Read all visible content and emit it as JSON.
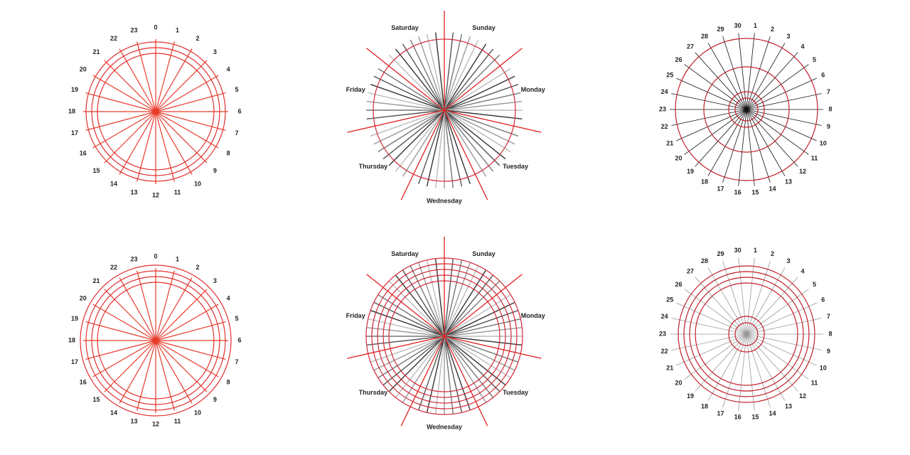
{
  "panels": [
    {
      "labels": [
        "0",
        "1",
        "2",
        "3",
        "4",
        "5",
        "6",
        "7",
        "8",
        "9",
        "10",
        "11",
        "12",
        "13",
        "14",
        "15",
        "16",
        "17",
        "18",
        "19",
        "20",
        "21",
        "22",
        "23"
      ]
    },
    {
      "labels": [
        "Sunday",
        "Monday",
        "Tuesday",
        "Wednesday",
        "Thursday",
        "Friday",
        "Saturday"
      ]
    },
    {
      "labels": [
        "1",
        "2",
        "3",
        "4",
        "5",
        "6",
        "7",
        "8",
        "9",
        "10",
        "11",
        "12",
        "13",
        "14",
        "15",
        "16",
        "17",
        "18",
        "19",
        "20",
        "21",
        "22",
        "23",
        "24",
        "25",
        "26",
        "27",
        "28",
        "29",
        "30"
      ]
    },
    {
      "labels": [
        "0",
        "1",
        "2",
        "3",
        "4",
        "5",
        "6",
        "7",
        "8",
        "9",
        "10",
        "11",
        "12",
        "13",
        "14",
        "15",
        "16",
        "17",
        "18",
        "19",
        "20",
        "21",
        "22",
        "23"
      ]
    },
    {
      "labels": [
        "Sunday",
        "Monday",
        "Tuesday",
        "Wednesday",
        "Thursday",
        "Friday",
        "Saturday"
      ]
    },
    {
      "labels": [
        "1",
        "2",
        "3",
        "4",
        "5",
        "6",
        "7",
        "8",
        "9",
        "10",
        "11",
        "12",
        "13",
        "14",
        "15",
        "16",
        "17",
        "18",
        "19",
        "20",
        "21",
        "22",
        "23",
        "24",
        "25",
        "26",
        "27",
        "28",
        "29",
        "30"
      ]
    }
  ]
}
